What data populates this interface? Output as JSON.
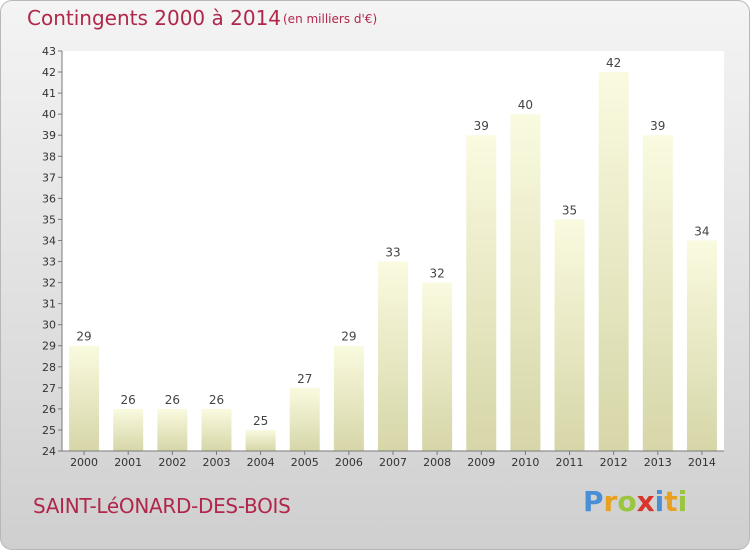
{
  "header": {
    "title": "Contingents 2000 à 2014",
    "subtitle": "(en milliers d'€)"
  },
  "footer": {
    "place": "SAINT-LéONARD-DES-BOIS",
    "brand": [
      "P",
      "r",
      "o",
      "x",
      "i",
      "t",
      "i"
    ],
    "brand_colors": [
      "#4a8ed6",
      "#e8a020",
      "#9bc53d",
      "#d9362b",
      "#4a8ed6",
      "#e8a020",
      "#9bc53d"
    ]
  },
  "chart_data": {
    "type": "bar",
    "title": "Contingents 2000 à 2014",
    "subtitle": "(en milliers d'€)",
    "xlabel": "",
    "ylabel": "",
    "categories": [
      "2000",
      "2001",
      "2002",
      "2003",
      "2004",
      "2005",
      "2006",
      "2007",
      "2008",
      "2009",
      "2010",
      "2011",
      "2012",
      "2013",
      "2014"
    ],
    "values": [
      29,
      26,
      26,
      26,
      25,
      27,
      29,
      33,
      32,
      39,
      40,
      35,
      42,
      39,
      34
    ],
    "ylim": [
      24,
      43
    ],
    "yticks": [
      24,
      25,
      26,
      27,
      28,
      29,
      30,
      31,
      32,
      33,
      34,
      35,
      36,
      37,
      38,
      39,
      40,
      41,
      42,
      43
    ],
    "grid": false,
    "legend": "none",
    "colors": {
      "bar_top": "#fafae0",
      "bar_bottom": "#d6d6a8",
      "plot_bg": "#ffffff",
      "axis": "#7a7a7a"
    }
  }
}
